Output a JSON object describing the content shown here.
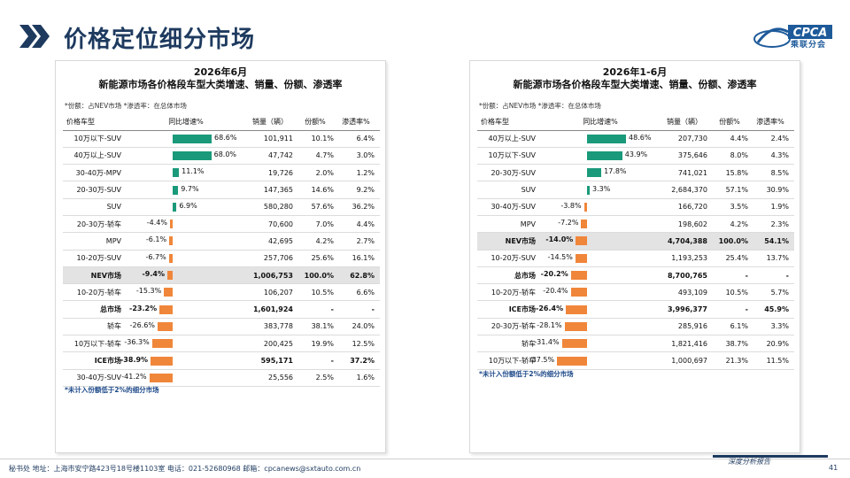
{
  "header": {
    "title": "价格定位细分市场",
    "logo_text": "CPCA",
    "logo_cn": "乘联分会"
  },
  "left": {
    "title1": "2026年6月",
    "title2": "新能源市场各价格段车型大类增速、销量、份额、渗透率",
    "note": "*份额：占NEV市场   *渗透率：在总体市场",
    "columns": [
      "价格车型",
      "同比增速%",
      "销量（辆）",
      "份额%",
      "渗透率%"
    ],
    "max_abs": 68.6,
    "rows": [
      {
        "name": "10万以下-SUV",
        "chg": 68.6,
        "chg_label": "68.6%",
        "sales": "101,911",
        "share": "10.1%",
        "pen": "6.4%",
        "bold": false,
        "gray": false
      },
      {
        "name": "40万以上-SUV",
        "chg": 68.0,
        "chg_label": "68.0%",
        "sales": "47,742",
        "share": "4.7%",
        "pen": "3.0%",
        "bold": false,
        "gray": false
      },
      {
        "name": "30-40万-MPV",
        "chg": 11.1,
        "chg_label": "11.1%",
        "sales": "19,726",
        "share": "2.0%",
        "pen": "1.2%",
        "bold": false,
        "gray": false
      },
      {
        "name": "20-30万-SUV",
        "chg": 9.7,
        "chg_label": "9.7%",
        "sales": "147,365",
        "share": "14.6%",
        "pen": "9.2%",
        "bold": false,
        "gray": false
      },
      {
        "name": "SUV",
        "chg": 6.9,
        "chg_label": "6.9%",
        "sales": "580,280",
        "share": "57.6%",
        "pen": "36.2%",
        "bold": false,
        "gray": false
      },
      {
        "name": "20-30万-轿车",
        "chg": -4.4,
        "chg_label": "-4.4%",
        "sales": "70,600",
        "share": "7.0%",
        "pen": "4.4%",
        "bold": false,
        "gray": false
      },
      {
        "name": "MPV",
        "chg": -6.1,
        "chg_label": "-6.1%",
        "sales": "42,695",
        "share": "4.2%",
        "pen": "2.7%",
        "bold": false,
        "gray": false
      },
      {
        "name": "10-20万-SUV",
        "chg": -6.7,
        "chg_label": "-6.7%",
        "sales": "257,706",
        "share": "25.6%",
        "pen": "16.1%",
        "bold": false,
        "gray": false
      },
      {
        "name": "NEV市场",
        "chg": -9.4,
        "chg_label": "-9.4%",
        "sales": "1,006,753",
        "share": "100.0%",
        "pen": "62.8%",
        "bold": true,
        "gray": true
      },
      {
        "name": "10-20万-轿车",
        "chg": -15.3,
        "chg_label": "-15.3%",
        "sales": "106,207",
        "share": "10.5%",
        "pen": "6.6%",
        "bold": false,
        "gray": false
      },
      {
        "name": "总市场",
        "chg": -23.2,
        "chg_label": "-23.2%",
        "sales": "1,601,924",
        "share": "-",
        "pen": "-",
        "bold": true,
        "gray": false
      },
      {
        "name": "轿车",
        "chg": -26.6,
        "chg_label": "-26.6%",
        "sales": "383,778",
        "share": "38.1%",
        "pen": "24.0%",
        "bold": false,
        "gray": false
      },
      {
        "name": "10万以下-轿车",
        "chg": -36.3,
        "chg_label": "-36.3%",
        "sales": "200,425",
        "share": "19.9%",
        "pen": "12.5%",
        "bold": false,
        "gray": false
      },
      {
        "name": "ICE市场",
        "chg": -38.9,
        "chg_label": "-38.9%",
        "sales": "595,171",
        "share": "-",
        "pen": "37.2%",
        "bold": true,
        "gray": false
      },
      {
        "name": "30-40万-SUV",
        "chg": -41.2,
        "chg_label": "-41.2%",
        "sales": "25,556",
        "share": "2.5%",
        "pen": "1.6%",
        "bold": false,
        "gray": false
      }
    ],
    "foot": "*未计入份额低于2%的细分市场"
  },
  "right": {
    "title1": "2026年1-6月",
    "title2": "新能源市场各价格段车型大类增速、销量、份额、渗透率",
    "note": "*份额：占NEV市场   *渗透率：在总体市场",
    "columns": [
      "价格车型",
      "同比增速%",
      "销量（辆）",
      "份额%",
      "渗透率%"
    ],
    "max_abs": 48.6,
    "rows": [
      {
        "name": "40万以上-SUV",
        "chg": 48.6,
        "chg_label": "48.6%",
        "sales": "207,730",
        "share": "4.4%",
        "pen": "2.4%",
        "bold": false,
        "gray": false
      },
      {
        "name": "10万以下-SUV",
        "chg": 43.9,
        "chg_label": "43.9%",
        "sales": "375,646",
        "share": "8.0%",
        "pen": "4.3%",
        "bold": false,
        "gray": false
      },
      {
        "name": "20-30万-SUV",
        "chg": 17.8,
        "chg_label": "17.8%",
        "sales": "741,021",
        "share": "15.8%",
        "pen": "8.5%",
        "bold": false,
        "gray": false
      },
      {
        "name": "SUV",
        "chg": 3.3,
        "chg_label": "3.3%",
        "sales": "2,684,370",
        "share": "57.1%",
        "pen": "30.9%",
        "bold": false,
        "gray": false
      },
      {
        "name": "30-40万-SUV",
        "chg": -3.8,
        "chg_label": "-3.8%",
        "sales": "166,720",
        "share": "3.5%",
        "pen": "1.9%",
        "bold": false,
        "gray": false
      },
      {
        "name": "MPV",
        "chg": -7.2,
        "chg_label": "-7.2%",
        "sales": "198,602",
        "share": "4.2%",
        "pen": "2.3%",
        "bold": false,
        "gray": false
      },
      {
        "name": "NEV市场",
        "chg": -14.0,
        "chg_label": "-14.0%",
        "sales": "4,704,388",
        "share": "100.0%",
        "pen": "54.1%",
        "bold": true,
        "gray": true
      },
      {
        "name": "10-20万-SUV",
        "chg": -14.5,
        "chg_label": "-14.5%",
        "sales": "1,193,253",
        "share": "25.4%",
        "pen": "13.7%",
        "bold": false,
        "gray": false
      },
      {
        "name": "总市场",
        "chg": -20.2,
        "chg_label": "-20.2%",
        "sales": "8,700,765",
        "share": "-",
        "pen": "-",
        "bold": true,
        "gray": false
      },
      {
        "name": "10-20万-轿车",
        "chg": -20.4,
        "chg_label": "-20.4%",
        "sales": "493,109",
        "share": "10.5%",
        "pen": "5.7%",
        "bold": false,
        "gray": false
      },
      {
        "name": "ICE市场",
        "chg": -26.4,
        "chg_label": "-26.4%",
        "sales": "3,996,377",
        "share": "-",
        "pen": "45.9%",
        "bold": true,
        "gray": false
      },
      {
        "name": "20-30万-轿车",
        "chg": -28.1,
        "chg_label": "-28.1%",
        "sales": "285,916",
        "share": "6.1%",
        "pen": "3.3%",
        "bold": false,
        "gray": false
      },
      {
        "name": "轿车",
        "chg": -31.4,
        "chg_label": "-31.4%",
        "sales": "1,821,416",
        "share": "38.7%",
        "pen": "20.9%",
        "bold": false,
        "gray": false
      },
      {
        "name": "10万以下-轿车",
        "chg": -37.5,
        "chg_label": "-37.5%",
        "sales": "1,000,697",
        "share": "21.3%",
        "pen": "11.5%",
        "bold": false,
        "gray": false
      }
    ],
    "foot": "*未计入份额低于2%的细分市场"
  },
  "footer": {
    "address": "秘书处   地址：上海市安宁路423号18号楼1103室   电话：021-52680968   邮箱：cpcanews@sxtauto.com.cn",
    "tag": "深度分析报告",
    "page": "41"
  },
  "colors": {
    "positive": "#1a9a7a",
    "negative": "#f0863a",
    "title": "#1e3a5f"
  }
}
